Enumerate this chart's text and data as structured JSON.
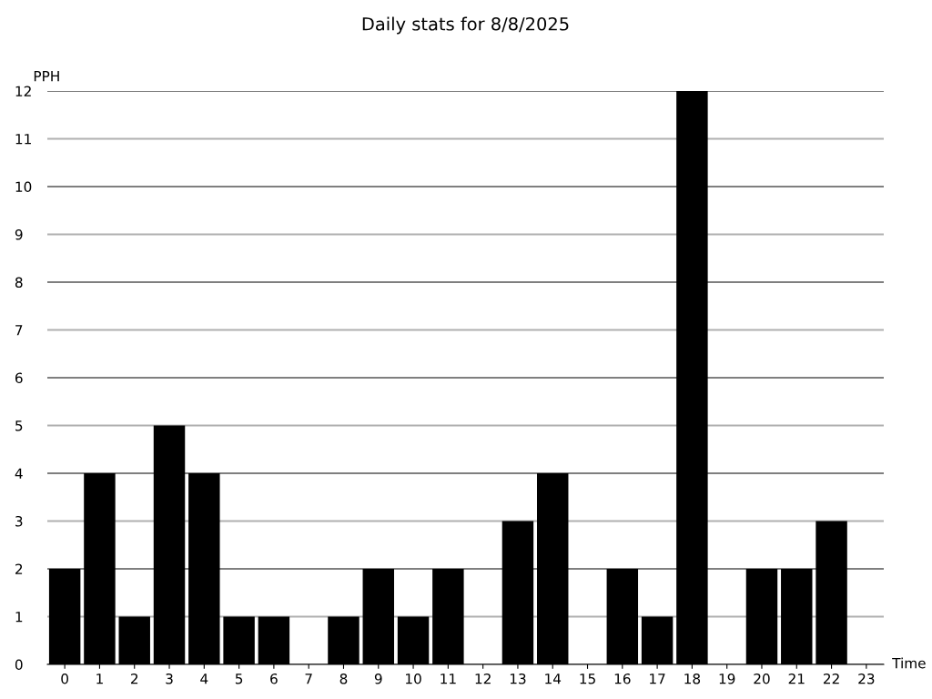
{
  "chart_data": {
    "type": "bar",
    "title": "Daily stats for 8/8/2025",
    "xlabel": "Time",
    "ylabel": "PPH",
    "categories": [
      "0",
      "1",
      "2",
      "3",
      "4",
      "5",
      "6",
      "7",
      "8",
      "9",
      "10",
      "11",
      "12",
      "13",
      "14",
      "15",
      "16",
      "17",
      "18",
      "19",
      "20",
      "21",
      "22",
      "23"
    ],
    "values": [
      2,
      4,
      1,
      5,
      4,
      1,
      1,
      0,
      1,
      2,
      1,
      2,
      0,
      3,
      4,
      0,
      2,
      1,
      12,
      0,
      2,
      2,
      3,
      0
    ],
    "color": "#000000",
    "ylim": [
      0,
      12
    ],
    "yticks": [
      0,
      1,
      2,
      3,
      4,
      5,
      6,
      7,
      8,
      9,
      10,
      11,
      12
    ],
    "grid": "y",
    "legend": false
  }
}
